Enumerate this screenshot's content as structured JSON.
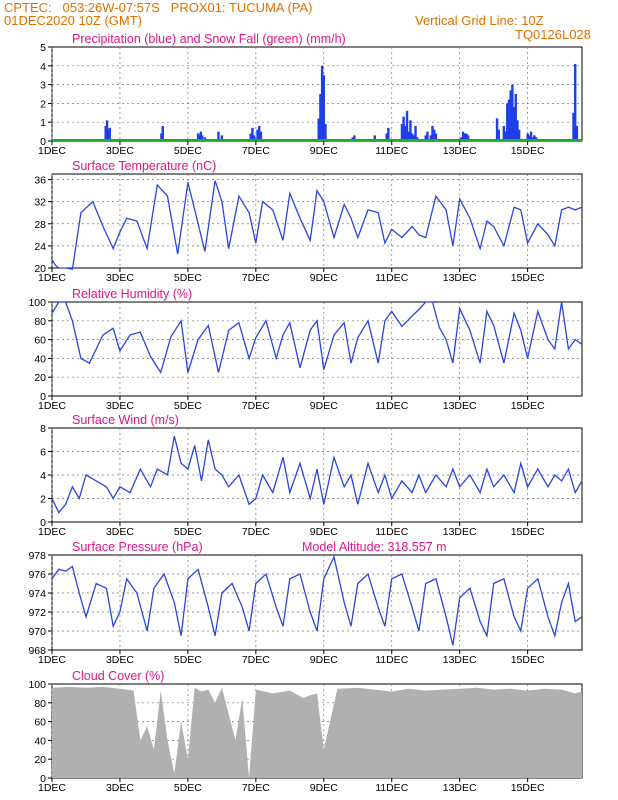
{
  "header": {
    "line1": "CPTEC:   053:26W-07:57S   PROX01: TUCUMA (PA)",
    "line2_left": "01DEC2020 10Z (GMT)",
    "line2_right": "Vertical Grid Line: 10Z",
    "line3_right": "TQ0126L028"
  },
  "colors": {
    "title": "#e0168a",
    "header": "#e07000",
    "line": "#2a45e0",
    "precip": "#1f3fe8",
    "snow": "#22aa22",
    "cloud": "#b0b0b0"
  },
  "x_axis": {
    "day_min": 1,
    "day_max": 16.6,
    "ticks": [
      1,
      3,
      5,
      7,
      9,
      11,
      13,
      15
    ],
    "labels": [
      "1DEC",
      "3DEC",
      "5DEC",
      "7DEC",
      "9DEC",
      "11DEC",
      "13DEC",
      "15DEC"
    ]
  },
  "chart_data": [
    {
      "id": "precip",
      "type": "bar",
      "title": "Precipitation (blue) and Snow Fall (green) (mm/h)",
      "ylim": [
        0,
        5
      ],
      "yticks": [
        0,
        1,
        2,
        3,
        4,
        5
      ],
      "x": [
        2.58,
        2.62,
        2.66,
        2.7,
        4.22,
        4.26,
        5.3,
        5.34,
        5.38,
        5.42,
        5.5,
        5.9,
        6.0,
        6.85,
        6.9,
        6.95,
        7.05,
        7.1,
        7.15,
        8.85,
        8.9,
        8.95,
        9.0,
        9.05,
        9.85,
        9.9,
        10.5,
        10.85,
        10.9,
        11.3,
        11.35,
        11.4,
        11.45,
        11.5,
        11.55,
        11.6,
        11.65,
        11.7,
        11.75,
        12.0,
        12.05,
        12.15,
        12.2,
        12.25,
        12.3,
        13.05,
        13.1,
        13.15,
        13.2,
        13.25,
        14.1,
        14.15,
        14.3,
        14.35,
        14.4,
        14.45,
        14.5,
        14.55,
        14.6,
        14.65,
        14.7,
        14.75,
        15.0,
        15.05,
        15.1,
        15.15,
        15.2,
        15.25,
        16.35,
        16.4,
        16.45
      ],
      "values": [
        0.8,
        1.1,
        0.6,
        0.7,
        0.4,
        0.8,
        0.4,
        0.3,
        0.5,
        0.3,
        0.2,
        0.5,
        0.3,
        0.4,
        0.7,
        0.3,
        0.6,
        0.8,
        0.5,
        1.2,
        2.5,
        4.0,
        3.5,
        0.9,
        0.2,
        0.3,
        0.3,
        0.4,
        0.7,
        0.9,
        1.3,
        0.8,
        1.6,
        0.5,
        1.1,
        0.4,
        0.3,
        0.8,
        0.2,
        0.3,
        0.5,
        0.3,
        0.8,
        0.6,
        0.4,
        0.2,
        0.5,
        0.4,
        0.4,
        0.3,
        1.2,
        0.6,
        0.8,
        0.5,
        2.0,
        2.2,
        2.7,
        3.0,
        1.8,
        2.5,
        1.1,
        0.6,
        0.4,
        0.3,
        0.5,
        0.2,
        0.3,
        0.2,
        1.5,
        4.1,
        0.8
      ],
      "snow_values": 0
    },
    {
      "id": "temp",
      "type": "line",
      "title": "Surface Temperature (nC)",
      "ylim": [
        20,
        37
      ],
      "yticks": [
        20,
        24,
        28,
        32,
        36
      ],
      "x": [
        1.0,
        1.1,
        1.2,
        1.4,
        1.6,
        1.85,
        2.2,
        2.5,
        2.8,
        3.0,
        3.2,
        3.5,
        3.8,
        4.1,
        4.4,
        4.7,
        5.0,
        5.2,
        5.5,
        5.8,
        6.0,
        6.2,
        6.5,
        6.8,
        7.0,
        7.2,
        7.5,
        7.8,
        8.0,
        8.3,
        8.6,
        8.8,
        9.0,
        9.3,
        9.6,
        9.8,
        10.0,
        10.3,
        10.6,
        10.8,
        11.0,
        11.3,
        11.6,
        11.8,
        12.0,
        12.3,
        12.6,
        12.8,
        13.0,
        13.3,
        13.6,
        13.8,
        14.0,
        14.3,
        14.6,
        14.8,
        15.0,
        15.3,
        15.6,
        15.8,
        16.0,
        16.2,
        16.4,
        16.6
      ],
      "values": [
        21.5,
        20.5,
        20.0,
        20.0,
        19.8,
        30.0,
        32.0,
        27.5,
        23.5,
        26.5,
        29.0,
        28.5,
        23.5,
        35.0,
        33.0,
        22.5,
        35.5,
        30.5,
        23.0,
        35.8,
        32.0,
        23.5,
        33.0,
        30.0,
        24.5,
        32.0,
        30.5,
        25.0,
        33.5,
        29.0,
        25.0,
        34.0,
        32.0,
        25.5,
        31.5,
        29.0,
        25.5,
        30.5,
        30.0,
        24.5,
        27.0,
        25.5,
        27.5,
        26.0,
        25.5,
        33.0,
        30.5,
        24.0,
        32.5,
        29.0,
        23.5,
        28.5,
        27.5,
        24.0,
        31.0,
        30.5,
        24.5,
        28.0,
        26.0,
        24.0,
        30.5,
        31.0,
        30.5,
        31.0
      ]
    },
    {
      "id": "rh",
      "type": "line",
      "title": "Relative Humidity (%)",
      "ylim": [
        0,
        100
      ],
      "yticks": [
        0,
        20,
        40,
        60,
        80,
        100
      ],
      "x": [
        1.0,
        1.2,
        1.4,
        1.6,
        1.85,
        2.1,
        2.5,
        2.8,
        3.0,
        3.3,
        3.6,
        3.9,
        4.2,
        4.5,
        4.8,
        5.0,
        5.3,
        5.6,
        5.9,
        6.2,
        6.5,
        6.8,
        7.0,
        7.3,
        7.6,
        7.8,
        8.0,
        8.3,
        8.6,
        8.8,
        9.0,
        9.3,
        9.6,
        9.8,
        10.0,
        10.3,
        10.6,
        10.8,
        11.0,
        11.3,
        11.6,
        11.8,
        12.0,
        12.2,
        12.4,
        12.6,
        12.8,
        13.0,
        13.3,
        13.6,
        13.8,
        14.0,
        14.3,
        14.6,
        14.8,
        15.0,
        15.3,
        15.6,
        15.8,
        16.0,
        16.2,
        16.4,
        16.6
      ],
      "values": [
        88,
        100,
        100,
        80,
        40,
        35,
        65,
        72,
        48,
        65,
        68,
        42,
        25,
        63,
        80,
        25,
        60,
        75,
        25,
        70,
        78,
        40,
        62,
        80,
        40,
        65,
        78,
        30,
        70,
        80,
        28,
        65,
        78,
        35,
        62,
        80,
        35,
        80,
        90,
        74,
        85,
        92,
        100,
        100,
        73,
        60,
        35,
        93,
        70,
        35,
        90,
        75,
        35,
        88,
        70,
        40,
        90,
        60,
        50,
        100,
        50,
        60,
        55
      ]
    },
    {
      "id": "wind",
      "type": "line",
      "title": "Surface Wind (m/s)",
      "ylim": [
        0,
        8
      ],
      "yticks": [
        0,
        2,
        4,
        6,
        8
      ],
      "x": [
        1.0,
        1.2,
        1.4,
        1.6,
        1.8,
        2.0,
        2.3,
        2.6,
        2.8,
        3.0,
        3.3,
        3.6,
        3.9,
        4.1,
        4.4,
        4.6,
        4.8,
        5.0,
        5.2,
        5.4,
        5.6,
        5.8,
        6.0,
        6.2,
        6.5,
        6.8,
        7.0,
        7.2,
        7.5,
        7.8,
        8.0,
        8.3,
        8.6,
        8.8,
        9.0,
        9.3,
        9.6,
        9.8,
        10.0,
        10.3,
        10.6,
        10.8,
        11.0,
        11.3,
        11.6,
        11.8,
        12.0,
        12.3,
        12.6,
        12.8,
        13.0,
        13.3,
        13.6,
        13.8,
        14.0,
        14.3,
        14.6,
        14.8,
        15.0,
        15.3,
        15.6,
        15.8,
        16.0,
        16.2,
        16.4,
        16.6
      ],
      "values": [
        2.0,
        0.8,
        1.5,
        3.0,
        2.0,
        4.0,
        3.5,
        3.0,
        2.0,
        3.0,
        2.5,
        4.5,
        3.0,
        4.5,
        4.0,
        7.3,
        5.0,
        4.5,
        6.5,
        3.5,
        7.0,
        4.5,
        4.0,
        3.0,
        4.0,
        1.5,
        2.0,
        4.0,
        2.5,
        5.5,
        2.5,
        5.0,
        2.0,
        4.5,
        1.5,
        5.5,
        3.0,
        4.0,
        1.5,
        5.0,
        2.5,
        4.0,
        2.0,
        3.5,
        2.5,
        4.0,
        2.5,
        4.0,
        3.0,
        4.5,
        3.0,
        4.0,
        2.5,
        4.5,
        3.0,
        4.0,
        2.5,
        5.0,
        3.0,
        4.5,
        3.0,
        4.0,
        3.5,
        4.5,
        2.5,
        3.5
      ]
    },
    {
      "id": "pres",
      "type": "line",
      "title": "Surface Pressure (hPa)",
      "subtitle": "Model Altitude: 318.557 m",
      "ylim": [
        968,
        978
      ],
      "yticks": [
        968,
        970,
        972,
        974,
        976,
        978
      ],
      "x": [
        1.0,
        1.2,
        1.4,
        1.6,
        1.8,
        2.0,
        2.3,
        2.6,
        2.8,
        3.0,
        3.2,
        3.5,
        3.8,
        4.0,
        4.3,
        4.6,
        4.8,
        5.0,
        5.3,
        5.6,
        5.8,
        6.0,
        6.3,
        6.6,
        6.8,
        7.0,
        7.3,
        7.6,
        7.8,
        8.0,
        8.3,
        8.6,
        8.8,
        9.0,
        9.3,
        9.6,
        9.8,
        10.0,
        10.3,
        10.6,
        10.8,
        11.0,
        11.3,
        11.6,
        11.8,
        12.0,
        12.3,
        12.6,
        12.8,
        13.0,
        13.3,
        13.6,
        13.8,
        14.0,
        14.3,
        14.6,
        14.8,
        15.0,
        15.3,
        15.6,
        15.8,
        16.0,
        16.2,
        16.4,
        16.6
      ],
      "values": [
        975.5,
        976.5,
        976.3,
        976.8,
        974.0,
        971.5,
        975.0,
        974.5,
        970.5,
        972.0,
        975.5,
        974.0,
        970.0,
        974.5,
        976.0,
        973.0,
        969.5,
        975.5,
        976.5,
        972.5,
        969.5,
        974.0,
        975.0,
        972.5,
        970.0,
        975.0,
        976.0,
        972.5,
        970.5,
        975.5,
        976.0,
        972.0,
        970.0,
        975.5,
        977.8,
        973.0,
        970.5,
        975.0,
        976.0,
        972.5,
        970.5,
        975.5,
        976.0,
        972.5,
        970.0,
        975.0,
        975.5,
        971.5,
        968.5,
        973.5,
        974.5,
        971.0,
        969.5,
        975.0,
        975.5,
        971.5,
        970.0,
        974.5,
        975.5,
        971.5,
        969.5,
        973.0,
        975.0,
        971.0,
        971.5
      ]
    },
    {
      "id": "cloud",
      "type": "bar",
      "title": "Cloud Cover (%)",
      "ylim": [
        0,
        100
      ],
      "yticks": [
        0,
        20,
        40,
        60,
        80,
        100
      ],
      "x": [
        1.0,
        1.5,
        2.0,
        2.5,
        3.0,
        3.4,
        3.6,
        3.8,
        4.0,
        4.2,
        4.4,
        4.6,
        4.8,
        5.0,
        5.2,
        5.4,
        5.6,
        5.8,
        6.0,
        6.4,
        6.6,
        6.8,
        7.0,
        7.5,
        8.0,
        8.4,
        8.6,
        8.8,
        9.0,
        9.4,
        10.0,
        10.5,
        11.0,
        11.5,
        12.0,
        12.5,
        13.0,
        13.5,
        14.0,
        14.5,
        15.0,
        15.5,
        16.0,
        16.4,
        16.6
      ],
      "values": [
        96,
        97,
        96,
        97,
        95,
        93,
        40,
        55,
        30,
        93,
        40,
        5,
        60,
        20,
        96,
        92,
        94,
        80,
        96,
        40,
        85,
        0,
        94,
        90,
        93,
        85,
        88,
        90,
        30,
        95,
        96,
        94,
        92,
        95,
        93,
        94,
        95,
        96,
        94,
        95,
        93,
        95,
        94,
        90,
        92
      ]
    }
  ]
}
